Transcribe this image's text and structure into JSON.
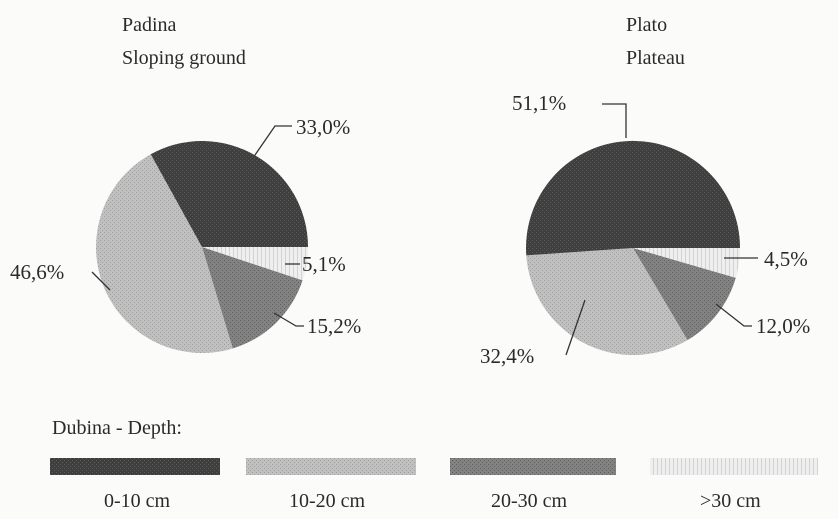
{
  "chart_data": [
    {
      "type": "pie",
      "title_lines": [
        "Padina",
        "Sloping ground"
      ],
      "categories": [
        "0-10 cm",
        "10-20 cm",
        "20-30 cm",
        ">30 cm"
      ],
      "values": [
        33.0,
        46.6,
        15.2,
        5.1
      ],
      "labels": [
        "33,0%",
        "46,6%",
        "15,2%",
        "5,1%"
      ]
    },
    {
      "type": "pie",
      "title_lines": [
        "Plato",
        "Plateau"
      ],
      "categories": [
        "0-10 cm",
        "10-20 cm",
        "20-30 cm",
        ">30 cm"
      ],
      "values": [
        51.1,
        32.4,
        12.0,
        4.5
      ],
      "labels": [
        "51,1%",
        "32,4%",
        "12,0%",
        "4,5%"
      ]
    }
  ],
  "legend": {
    "title": "Dubina -  Depth:",
    "items": [
      {
        "label": "0-10 cm",
        "color": "#3f3f3f"
      },
      {
        "label": "10-20 cm",
        "color": "#bdbdbd"
      },
      {
        "label": "20-30 cm",
        "color": "#7f7f7f"
      },
      {
        "label": ">30 cm",
        "color": "#e6e6e6"
      }
    ]
  }
}
